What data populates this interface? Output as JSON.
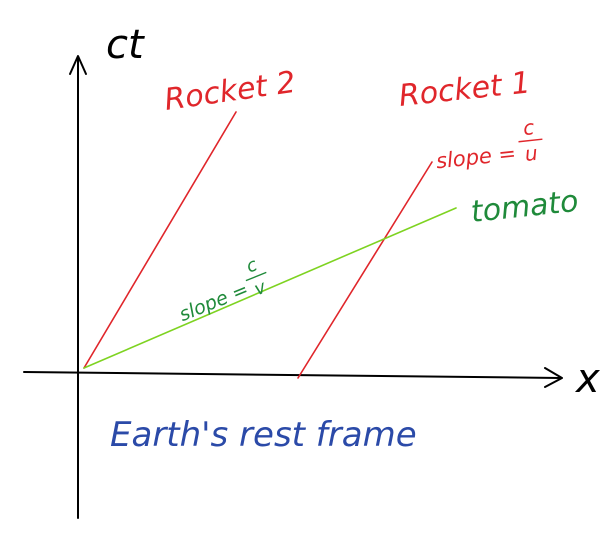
{
  "axes": {
    "y_label": "ct",
    "x_label": "x"
  },
  "worldlines": {
    "rocket1": {
      "label": "Rocket 1",
      "slope_prefix": "slope =",
      "slope_num": "c",
      "slope_den": "u",
      "color": "#e0262b"
    },
    "rocket2": {
      "label": "Rocket 2",
      "color": "#e0262b"
    },
    "tomato": {
      "label": "tomato",
      "slope_prefix": "slope =",
      "slope_num": "c",
      "slope_den": "v",
      "color": "#7ed321",
      "label_color": "#1f8a3a"
    }
  },
  "caption": {
    "text": "Earth's rest frame",
    "color": "#2b4aa8"
  },
  "colors": {
    "axis": "#000000"
  }
}
